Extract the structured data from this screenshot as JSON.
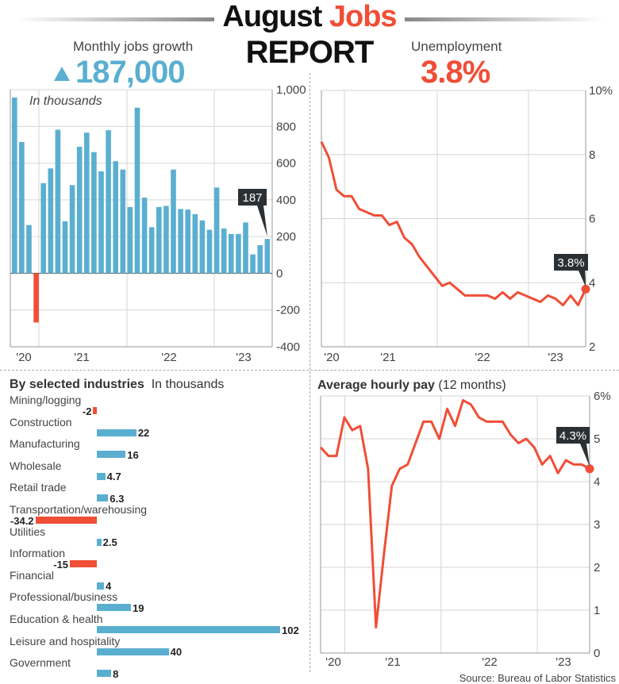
{
  "header": {
    "title_part1": "August",
    "title_part2": "Jobs",
    "title_line2": "REPORT",
    "jobs_label": "Monthly jobs growth",
    "jobs_value": "187,000",
    "jobs_icon": "triangle-up-icon",
    "unemployment_label": "Unemployment",
    "unemployment_value": "3.8%"
  },
  "colors": {
    "blue": "#5aafd0",
    "red": "#f04e37",
    "callout": "#2b3034"
  },
  "chart_data": [
    {
      "type": "bar",
      "annotation": "In thousands",
      "x_tick_labels": [
        "'20",
        "'21",
        "'22",
        "'23"
      ],
      "y_tick_labels": [
        "1,000",
        "800",
        "600",
        "400",
        "200",
        "0",
        "-200",
        "-400"
      ],
      "ylim": [
        -400,
        1000
      ],
      "grid": true,
      "callout": "187",
      "values": [
        957,
        715,
        263,
        -268,
        491,
        571,
        782,
        283,
        480,
        689,
        766,
        660,
        555,
        779,
        610,
        565,
        361,
        902,
        412,
        251,
        361,
        367,
        565,
        350,
        347,
        322,
        288,
        237,
        467,
        244,
        214,
        214,
        277,
        103,
        153,
        187
      ]
    },
    {
      "type": "line",
      "x_tick_labels": [
        "'20",
        "'21",
        "'22",
        "'23"
      ],
      "y_tick_labels": [
        "10%",
        "8",
        "6",
        "4",
        "2"
      ],
      "ylim": [
        2,
        10
      ],
      "grid": true,
      "callout": "3.8%",
      "values": [
        8.4,
        7.9,
        6.9,
        6.7,
        6.7,
        6.3,
        6.2,
        6.1,
        6.1,
        5.8,
        5.9,
        5.4,
        5.2,
        4.8,
        4.5,
        4.2,
        3.9,
        4.0,
        3.8,
        3.6,
        3.6,
        3.6,
        3.6,
        3.5,
        3.7,
        3.5,
        3.7,
        3.6,
        3.5,
        3.4,
        3.6,
        3.5,
        3.3,
        3.6,
        3.3,
        3.8
      ]
    },
    {
      "type": "line",
      "title": "Average hourly pay",
      "subtitle": "(12 months)",
      "x_tick_labels": [
        "'20",
        "'21",
        "'22",
        "'23"
      ],
      "y_tick_labels": [
        "6%",
        "5",
        "4",
        "3",
        "2",
        "1",
        "0"
      ],
      "ylim": [
        0,
        6
      ],
      "grid": true,
      "callout": "4.3%",
      "values": [
        4.8,
        4.6,
        4.6,
        5.5,
        5.2,
        5.3,
        4.3,
        0.6,
        2.3,
        3.9,
        4.3,
        4.4,
        4.9,
        5.4,
        5.4,
        5.0,
        5.7,
        5.3,
        5.9,
        5.8,
        5.5,
        5.4,
        5.4,
        5.4,
        5.1,
        4.9,
        5.0,
        4.8,
        4.4,
        4.6,
        4.2,
        4.5,
        4.4,
        4.4,
        4.3
      ]
    },
    {
      "type": "bar",
      "orientation": "horizontal",
      "title": "By selected industries",
      "subtitle": "In thousands",
      "categories": [
        "Mining/logging",
        "Construction",
        "Manufacturing",
        "Wholesale",
        "Retail trade",
        "Transportation/warehousing",
        "Utilities",
        "Information",
        "Financial",
        "Professional/business",
        "Education & health",
        "Leisure and hospitality",
        "Government"
      ],
      "values": [
        -2,
        22,
        16,
        4.7,
        6.3,
        -34.2,
        2.5,
        -15,
        4,
        19,
        102,
        40,
        8
      ],
      "value_labels": [
        "-2",
        "22",
        "16",
        "4.7",
        "6.3",
        "-34.2",
        "2.5",
        "-15",
        "4",
        "19",
        "102",
        "40",
        "8"
      ]
    }
  ],
  "footer": {
    "source": "Source: Bureau of Labor Statistics"
  }
}
